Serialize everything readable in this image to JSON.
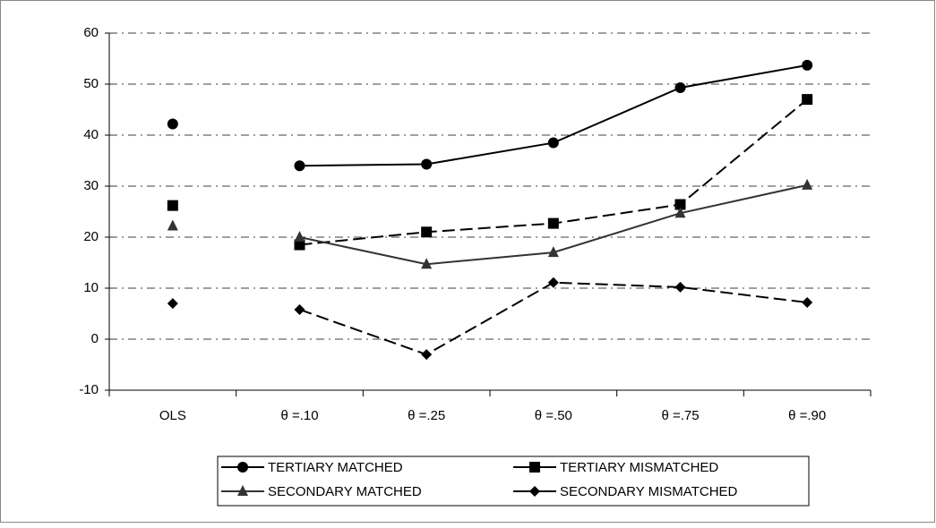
{
  "chart_data": {
    "type": "line",
    "categories": [
      "OLS",
      "θ =.10",
      "θ =.25",
      "θ =.50",
      "θ =.75",
      "θ =.90"
    ],
    "series": [
      {
        "name": "TERTIARY MATCHED",
        "color": "#000000",
        "marker": "circle",
        "line_style": "solid",
        "values": [
          42.2,
          34,
          34.3,
          38.5,
          49.3,
          53.7
        ]
      },
      {
        "name": "TERTIARY MISMATCHED",
        "color": "#000000",
        "marker": "square",
        "line_style": "dashed",
        "values": [
          26.2,
          18.5,
          21,
          22.7,
          26.4,
          47
        ]
      },
      {
        "name": "SECONDARY MATCHED",
        "color": "#333333",
        "marker": "triangle",
        "line_style": "solid",
        "values": [
          22.2,
          20,
          14.7,
          17,
          24.7,
          30.2
        ]
      },
      {
        "name": "SECONDARY MISMATCHED",
        "color": "#000000",
        "marker": "diamond",
        "line_style": "dashed",
        "values": [
          7,
          5.8,
          -3,
          11.1,
          10.2,
          7.2
        ]
      }
    ],
    "ylim": [
      -10,
      60
    ],
    "yticks": [
      -10,
      0,
      10,
      20,
      30,
      40,
      50,
      60
    ],
    "grid": true,
    "legend": "bottom"
  }
}
